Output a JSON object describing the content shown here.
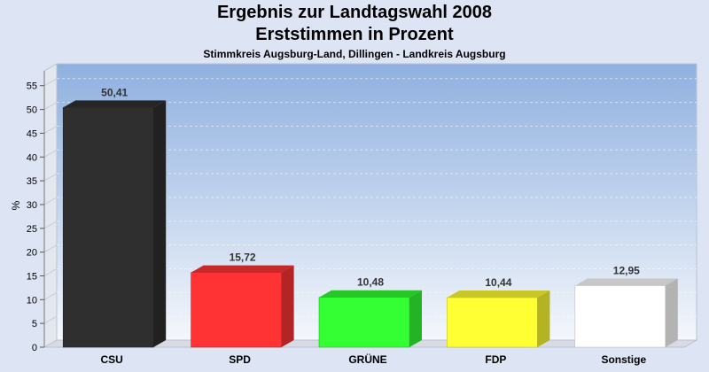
{
  "chart_data": {
    "type": "bar",
    "title": "Ergebnis zur Landtagswahl 2008",
    "title2": "Erststimmen in Prozent",
    "subtitle": "Stimmkreis Augsburg-Land, Dillingen - Landkreis Augsburg",
    "ylabel": "%",
    "xlabel": "",
    "ylim": [
      0,
      57
    ],
    "yticks": [
      0,
      5,
      10,
      15,
      20,
      25,
      30,
      35,
      40,
      45,
      50,
      55
    ],
    "grid": true,
    "legend": "none",
    "categories": [
      "CSU",
      "SPD",
      "GRÜNE",
      "FDP",
      "Sonstige"
    ],
    "values": [
      50.41,
      15.72,
      10.48,
      10.44,
      12.95
    ],
    "value_labels": [
      "50,41",
      "15,72",
      "10,48",
      "10,44",
      "12,95"
    ],
    "colors": [
      "#2f2f2f",
      "#ff3333",
      "#33ff33",
      "#ffff33",
      "#ffffff"
    ]
  }
}
